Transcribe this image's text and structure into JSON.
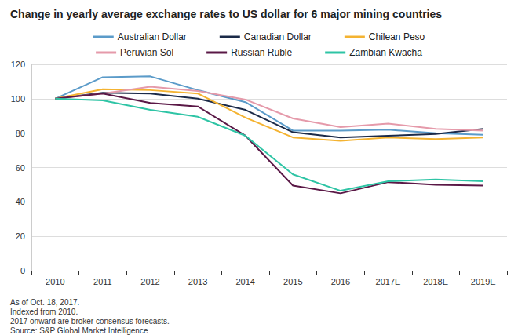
{
  "chart_data": {
    "type": "line",
    "title": "Change in yearly average exchange rates to US dollar for 6 major mining countries",
    "annotations": [
      "As of Oct. 18, 2017.",
      "Indexed from 2010.",
      "2017 onward are broker consensus forecasts.",
      "Source: S&P Global Market Intelligence"
    ],
    "categories": [
      "2010",
      "2011",
      "2012",
      "2013",
      "2014",
      "2015",
      "2016",
      "2017E",
      "2018E",
      "2019E"
    ],
    "series": [
      {
        "name": "Australian Dollar",
        "color": "#5b9bc9",
        "values": [
          100,
          112.5,
          113,
          105,
          98,
          81.5,
          81.5,
          82,
          80,
          79
        ]
      },
      {
        "name": "Canadian Dollar",
        "color": "#1b2a48",
        "values": [
          100,
          103.5,
          103,
          100,
          93.5,
          80.5,
          77.5,
          78.5,
          79.5,
          82.5
        ]
      },
      {
        "name": "Chilean Peso",
        "color": "#f4b331",
        "values": [
          100,
          105.5,
          105,
          103,
          89,
          77.5,
          75.5,
          77.5,
          76.5,
          77.5
        ]
      },
      {
        "name": "Peruvian Sol",
        "color": "#e59aaa",
        "values": [
          100,
          103,
          107,
          104.5,
          99.5,
          88.5,
          83.5,
          85.5,
          82.5,
          81.5
        ]
      },
      {
        "name": "Russian Ruble",
        "color": "#5a1846",
        "values": [
          100,
          103,
          97.5,
          95.5,
          78.5,
          49.5,
          45,
          51.5,
          50,
          49.5
        ]
      },
      {
        "name": "Zambian Kwacha",
        "color": "#2ec4a5",
        "values": [
          100,
          99,
          93.5,
          89.5,
          78.5,
          56,
          46.5,
          52,
          53,
          52
        ]
      }
    ],
    "ylim": [
      0,
      120
    ],
    "yticks": [
      0,
      20,
      40,
      60,
      80,
      100,
      120
    ],
    "grid": true,
    "legend": "top",
    "marker": "none",
    "line_style": "solid"
  }
}
